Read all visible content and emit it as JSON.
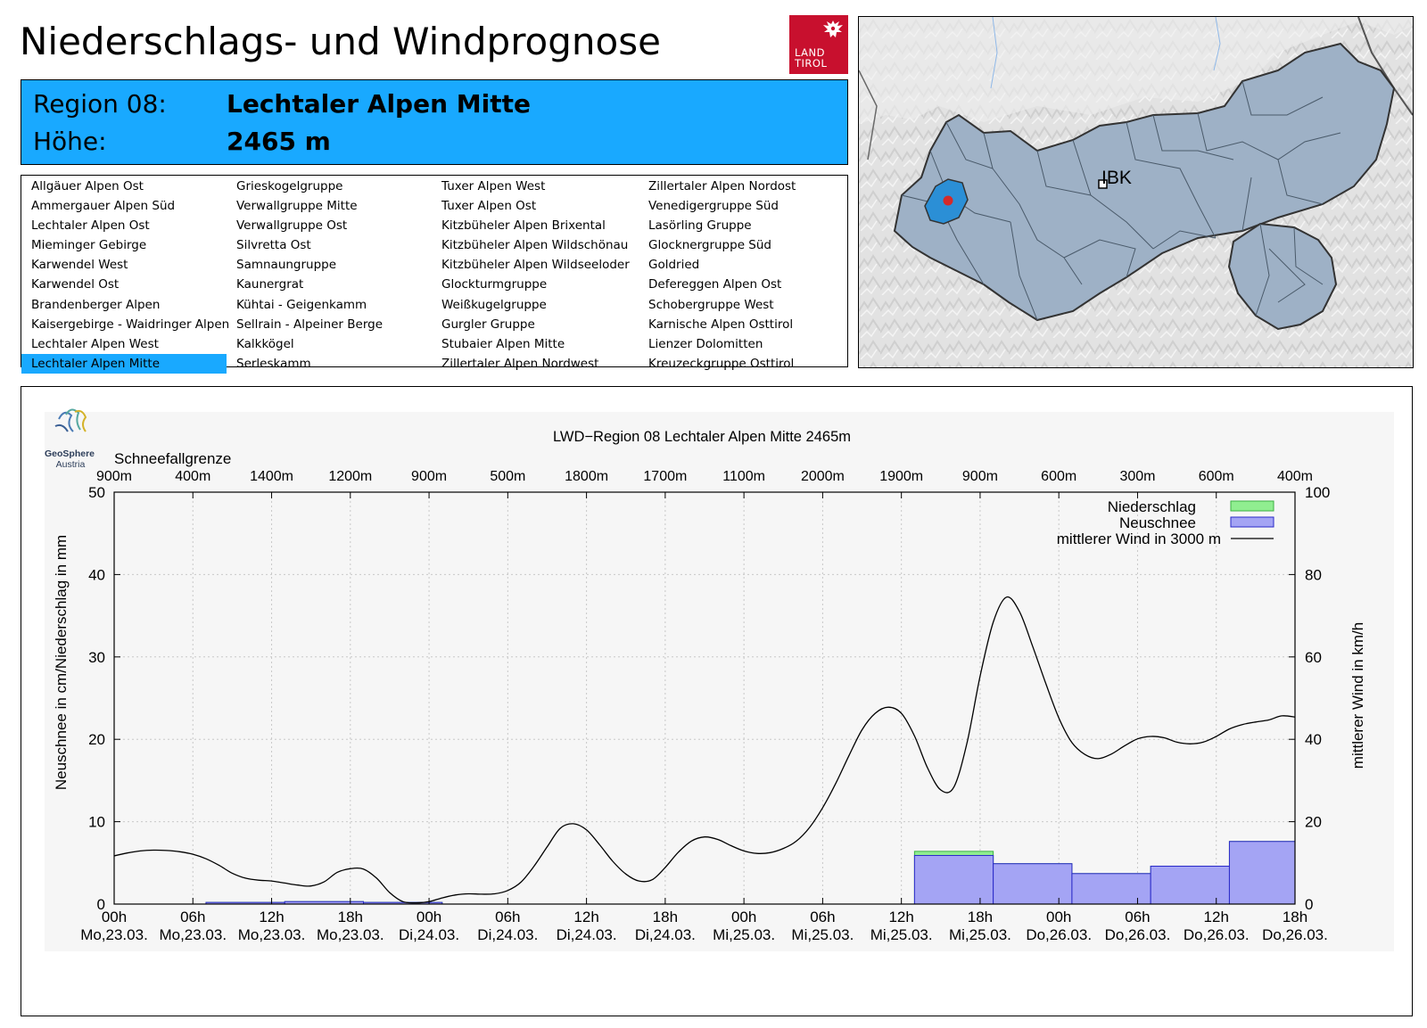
{
  "header": {
    "title": "Niederschlags- und Windprognose",
    "logo_line1": "LAND",
    "logo_line2": "TIROL"
  },
  "region": {
    "region_label": "Region 08:",
    "region_name": "Lechtaler Alpen Mitte",
    "height_label": "Höhe:",
    "height_value": "2465 m"
  },
  "region_list": {
    "selected": "Lechtaler Alpen Mitte",
    "columns": [
      [
        "Allgäuer Alpen Ost",
        "Ammergauer Alpen Süd",
        "Lechtaler Alpen Ost",
        "Mieminger Gebirge",
        "Karwendel West",
        "Karwendel Ost",
        "Brandenberger Alpen",
        "Kaisergebirge - Waidringer Alpen",
        "Lechtaler Alpen West",
        "Lechtaler Alpen Mitte"
      ],
      [
        "Grieskogelgruppe",
        "Verwallgruppe Mitte",
        "Verwallgruppe Ost",
        "Silvretta Ost",
        "Samnaungruppe",
        "Kaunergrat",
        "Kühtai - Geigenkamm",
        "Sellrain - Alpeiner Berge",
        "Kalkkögel",
        "Serleskamm"
      ],
      [
        "Tuxer Alpen West",
        "Tuxer Alpen Ost",
        "Kitzbüheler Alpen Brixental",
        "Kitzbüheler Alpen Wildschönau",
        "Kitzbüheler Alpen Wildseeloder",
        "Glockturmgruppe",
        "Weißkugelgruppe",
        "Gurgler Gruppe",
        "Stubaier Alpen Mitte",
        "Zillertaler Alpen Nordwest"
      ],
      [
        "Zillertaler Alpen Nordost",
        "Venedigergruppe Süd",
        "Lasörling Gruppe",
        "Glocknergruppe Süd",
        "Goldried",
        "Defereggen Alpen Ost",
        "Schobergruppe West",
        "Karnische Alpen Osttirol",
        "Lienzer Dolomitten",
        "Kreuzeckgruppe Osttirol"
      ]
    ]
  },
  "map": {
    "city_label": "IBK",
    "colors": {
      "region_fill": "#9eb1c6",
      "selected_fill": "#2b8fd6",
      "marker": "#d42a2a"
    }
  },
  "chart_data": {
    "type": "bar+line",
    "title": "LWD−Region 08 Lechtaler Alpen Mitte 2465m",
    "source_logo_line1": "GeoSphere",
    "source_logo_line2": "Austria",
    "snowline_title": "Schneefallgrenze",
    "snowline_labels": [
      "900m",
      "400m",
      "1400m",
      "1200m",
      "900m",
      "500m",
      "1800m",
      "1700m",
      "1100m",
      "2000m",
      "1900m",
      "900m",
      "600m",
      "300m",
      "600m",
      "400m"
    ],
    "ylabel_left": "Neuschnee in cm/Niederschlag in mm",
    "ylabel_right": "mittlerer Wind in km/h",
    "ylim_left": [
      0,
      50
    ],
    "ylim_right": [
      0,
      100
    ],
    "yticks_left": [
      0,
      10,
      20,
      30,
      40,
      50
    ],
    "yticks_right": [
      0,
      20,
      40,
      60,
      80,
      100
    ],
    "x_range_hours": [
      0,
      90
    ],
    "x_ticks": [
      {
        "time": "00h",
        "date": "Mo,23.03."
      },
      {
        "time": "06h",
        "date": "Mo,23.03."
      },
      {
        "time": "12h",
        "date": "Mo,23.03."
      },
      {
        "time": "18h",
        "date": "Mo,23.03."
      },
      {
        "time": "00h",
        "date": "Di,24.03."
      },
      {
        "time": "06h",
        "date": "Di,24.03."
      },
      {
        "time": "12h",
        "date": "Di,24.03."
      },
      {
        "time": "18h",
        "date": "Di,24.03."
      },
      {
        "time": "00h",
        "date": "Mi,25.03."
      },
      {
        "time": "06h",
        "date": "Mi,25.03."
      },
      {
        "time": "12h",
        "date": "Mi,25.03."
      },
      {
        "time": "18h",
        "date": "Mi,25.03."
      },
      {
        "time": "00h",
        "date": "Do,26.03."
      },
      {
        "time": "06h",
        "date": "Do,26.03."
      },
      {
        "time": "12h",
        "date": "Do,26.03."
      },
      {
        "time": "18h",
        "date": "Do,26.03."
      }
    ],
    "legend": {
      "precip": "Niederschlag",
      "snow": "Neuschnee",
      "wind": "mittlerer Wind in 3000 m",
      "placement": "top-right"
    },
    "colors": {
      "precip": "#90ee90",
      "precip_edge": "#3cb043",
      "snow": "#a4a4f4",
      "snow_edge": "#2a2ac8",
      "wind": "#000000"
    },
    "series": [
      {
        "name": "Niederschlag",
        "unit": "mm",
        "bars": [
          {
            "from": 7,
            "to": 13,
            "value": 0.2
          },
          {
            "from": 13,
            "to": 19,
            "value": 0.3
          },
          {
            "from": 19,
            "to": 25,
            "value": 0.2
          },
          {
            "from": 61,
            "to": 67,
            "value": 6.4
          },
          {
            "from": 67,
            "to": 73,
            "value": 4.9
          },
          {
            "from": 73,
            "to": 79,
            "value": 3.7
          },
          {
            "from": 79,
            "to": 85,
            "value": 4.6
          },
          {
            "from": 85,
            "to": 90,
            "value": 7.6
          }
        ]
      },
      {
        "name": "Neuschnee",
        "unit": "cm",
        "bars": [
          {
            "from": 7,
            "to": 13,
            "value": 0.2
          },
          {
            "from": 13,
            "to": 19,
            "value": 0.3
          },
          {
            "from": 19,
            "to": 25,
            "value": 0.2
          },
          {
            "from": 61,
            "to": 67,
            "value": 5.9
          },
          {
            "from": 67,
            "to": 73,
            "value": 4.9
          },
          {
            "from": 73,
            "to": 79,
            "value": 3.7
          },
          {
            "from": 79,
            "to": 85,
            "value": 4.6
          },
          {
            "from": 85,
            "to": 90,
            "value": 7.6
          }
        ]
      },
      {
        "name": "mittlerer Wind in 3000 m",
        "unit": "km/h",
        "x": [
          0,
          1,
          2,
          3,
          4,
          5,
          6,
          7,
          8,
          9,
          10,
          11,
          12,
          13,
          14,
          15,
          16,
          17,
          18,
          19,
          20,
          21,
          22,
          23,
          24,
          25,
          26,
          27,
          28,
          29,
          30,
          31,
          32,
          33,
          34,
          35,
          36,
          37,
          38,
          39,
          40,
          41,
          42,
          43,
          44,
          45,
          46,
          47,
          48,
          49,
          50,
          51,
          52,
          53,
          54,
          55,
          56,
          57,
          58,
          59,
          60,
          61,
          62,
          63,
          64,
          65,
          66,
          67,
          68,
          69,
          70,
          71,
          72,
          73,
          74,
          75,
          76,
          77,
          78,
          79,
          80,
          81,
          82,
          83,
          84,
          85,
          86,
          87,
          88,
          89,
          90
        ],
        "values": [
          11.7,
          12.4,
          12.9,
          13.1,
          13.0,
          12.7,
          12.1,
          11.0,
          9.4,
          7.5,
          6.3,
          5.8,
          5.6,
          5.1,
          4.6,
          4.4,
          5.4,
          7.7,
          8.6,
          8.5,
          6.3,
          2.8,
          0.6,
          0.3,
          0.6,
          1.5,
          2.2,
          2.5,
          2.4,
          2.5,
          3.3,
          5.3,
          9.2,
          13.9,
          18.4,
          19.5,
          18.0,
          14.4,
          10.4,
          7.3,
          5.6,
          5.9,
          8.9,
          12.6,
          15.3,
          16.3,
          15.7,
          14.2,
          12.9,
          12.3,
          12.5,
          13.5,
          15.3,
          18.6,
          23.4,
          29.3,
          36.0,
          42.3,
          46.3,
          47.8,
          46.3,
          40.8,
          33.0,
          27.7,
          28.4,
          39.1,
          55.3,
          68.4,
          74.5,
          71.0,
          62.6,
          53.6,
          45.2,
          39.2,
          36.3,
          35.3,
          36.4,
          38.4,
          40.1,
          40.7,
          40.4,
          39.3,
          38.9,
          39.3,
          40.7,
          42.5,
          43.6,
          44.2,
          44.7,
          45.7,
          45.4
        ]
      }
    ]
  }
}
